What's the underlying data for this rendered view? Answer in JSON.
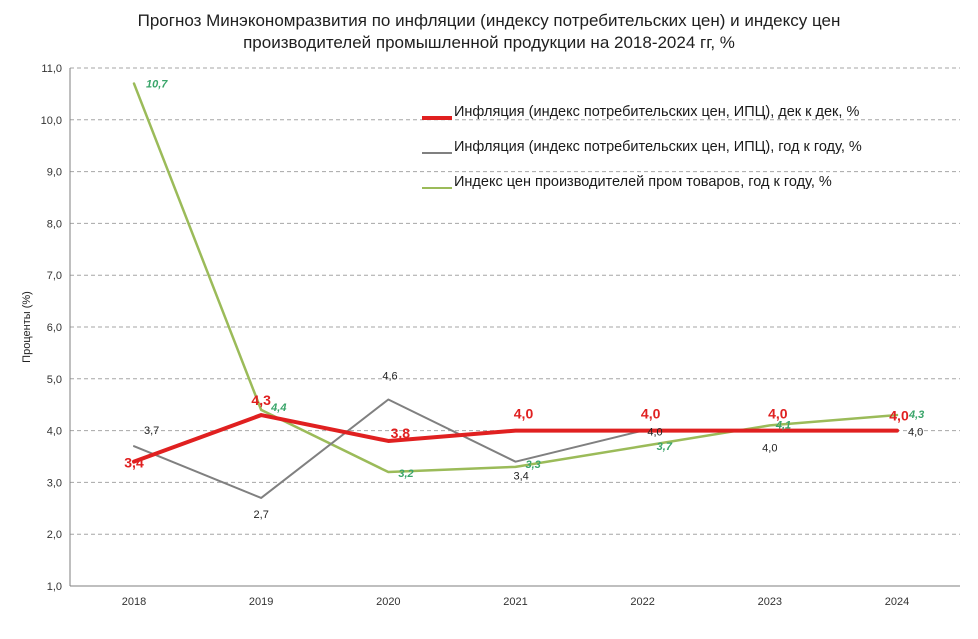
{
  "chart_data": {
    "type": "line",
    "title_lines": [
      "Прогноз Минэкономразвития по инфляции (индексу потребительских цен) и индексу цен",
      "производителей промышленной продукции на 2018-2024 гг, %"
    ],
    "xlabel": "",
    "ylabel": "Проценты  (%)",
    "categories": [
      "2018",
      "2019",
      "2020",
      "2021",
      "2022",
      "2023",
      "2024"
    ],
    "ylim": [
      1.0,
      11.0
    ],
    "yticks": [
      "1,0",
      "2,0",
      "3,0",
      "4,0",
      "5,0",
      "6,0",
      "7,0",
      "8,0",
      "9,0",
      "10,0",
      "11,0"
    ],
    "grid": true,
    "legend_position": "top-right",
    "series": [
      {
        "id": "cpi_dec",
        "name": "Инфляция (индекс потребительских  цен, ИПЦ), дек к дек,  %",
        "color": "#e02020",
        "width": 4,
        "values": [
          3.4,
          4.3,
          3.8,
          4.0,
          4.0,
          4.0,
          4.0
        ],
        "labels": [
          "3,4",
          "4,3",
          "3,8",
          "4,0",
          "4,0",
          "4,0",
          "4,0"
        ]
      },
      {
        "id": "cpi_yoy",
        "name": "Инфляция (индекс потребительских  цен, ИПЦ), год к году,  %",
        "color": "#808080",
        "width": 2,
        "values": [
          3.7,
          2.7,
          4.6,
          3.4,
          4.0,
          4.0,
          4.0
        ],
        "labels": [
          "3,7",
          "2,7",
          "4,6",
          "3,4",
          "4,0",
          "4,0",
          "4,0"
        ]
      },
      {
        "id": "ppi",
        "name": "Индекс цен производителей  пром товаров, год к году, %",
        "color": "#9bbb59",
        "label_color": "#3aa56a",
        "width": 2.5,
        "values": [
          10.7,
          4.4,
          3.2,
          3.3,
          3.7,
          4.1,
          4.3
        ],
        "labels": [
          "10,7",
          "4,4",
          "3,2",
          "3,3",
          "3,7",
          "4,1",
          "4,3"
        ]
      }
    ]
  }
}
